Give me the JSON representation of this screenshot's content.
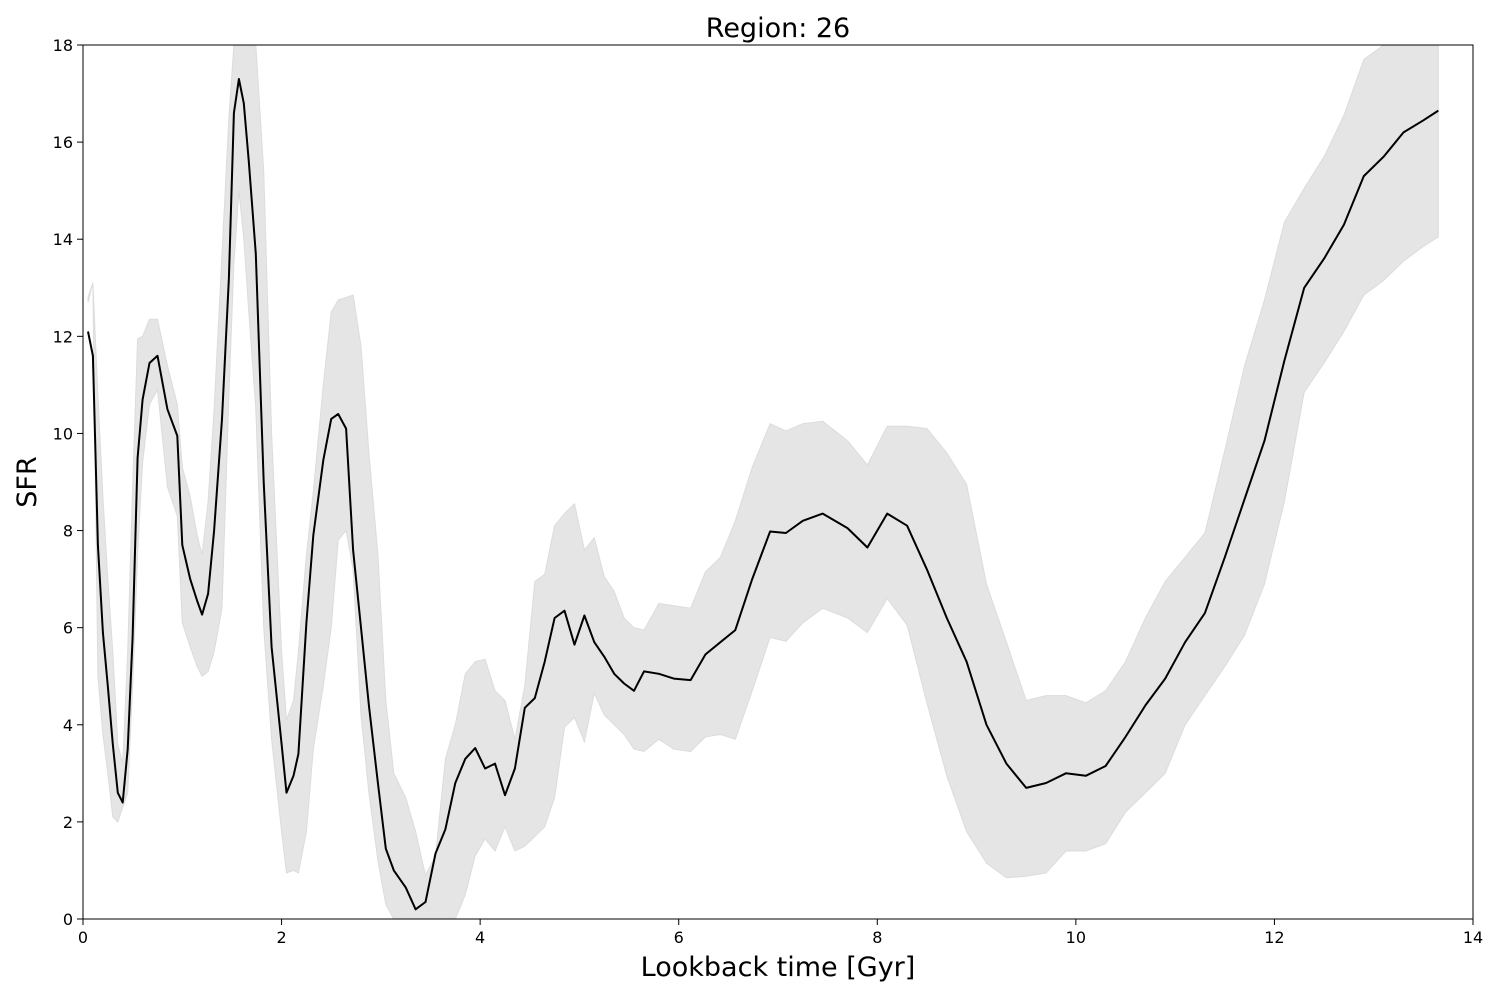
{
  "chart_data": {
    "type": "line",
    "title": "Region: 26",
    "xlabel": "Lookback time [Gyr]",
    "ylabel": "SFR",
    "xlim": [
      0,
      14
    ],
    "ylim": [
      0,
      18
    ],
    "xticks": [
      "0",
      "2",
      "4",
      "6",
      "8",
      "10",
      "12",
      "14"
    ],
    "yticks": [
      "0",
      "2",
      "4",
      "6",
      "8",
      "10",
      "12",
      "14",
      "16",
      "18"
    ],
    "grid": false,
    "legend": "none",
    "colors": {
      "line": "#000000",
      "band": "#e5e5e5"
    },
    "x": [
      0.05,
      0.1,
      0.15,
      0.2,
      0.25,
      0.3,
      0.35,
      0.4,
      0.45,
      0.5,
      0.55,
      0.6,
      0.67,
      0.75,
      0.85,
      0.95,
      1.0,
      1.08,
      1.15,
      1.2,
      1.26,
      1.32,
      1.4,
      1.47,
      1.52,
      1.57,
      1.62,
      1.67,
      1.74,
      1.82,
      1.9,
      2.0,
      2.05,
      2.12,
      2.17,
      2.25,
      2.32,
      2.42,
      2.5,
      2.57,
      2.65,
      2.72,
      2.8,
      2.88,
      2.97,
      3.05,
      3.13,
      3.25,
      3.35,
      3.45,
      3.55,
      3.65,
      3.75,
      3.85,
      3.95,
      4.05,
      4.15,
      4.25,
      4.35,
      4.45,
      4.55,
      4.65,
      4.75,
      4.85,
      4.95,
      5.05,
      5.15,
      5.25,
      5.35,
      5.45,
      5.55,
      5.65,
      5.8,
      5.95,
      6.12,
      6.27,
      6.42,
      6.57,
      6.74,
      6.92,
      7.08,
      7.25,
      7.45,
      7.7,
      7.9,
      8.1,
      8.3,
      8.5,
      8.7,
      8.9,
      9.1,
      9.3,
      9.5,
      9.7,
      9.9,
      10.1,
      10.3,
      10.5,
      10.7,
      10.9,
      11.1,
      11.3,
      11.5,
      11.7,
      11.9,
      12.1,
      12.3,
      12.5,
      12.7,
      12.9,
      13.1,
      13.3,
      13.5,
      13.65
    ],
    "y": [
      12.1,
      11.6,
      7.7,
      5.9,
      4.8,
      3.6,
      2.6,
      2.4,
      3.5,
      5.8,
      9.5,
      10.7,
      11.45,
      11.6,
      10.5,
      9.95,
      7.7,
      7.0,
      6.55,
      6.27,
      6.7,
      8.0,
      10.3,
      13.2,
      16.6,
      17.3,
      16.8,
      15.6,
      13.7,
      9.0,
      5.6,
      3.6,
      2.6,
      2.95,
      3.4,
      6.1,
      7.9,
      9.45,
      10.3,
      10.4,
      10.1,
      7.6,
      6.0,
      4.4,
      2.8,
      1.45,
      1.0,
      0.65,
      0.2,
      0.35,
      1.35,
      1.85,
      2.8,
      3.3,
      3.52,
      3.1,
      3.2,
      2.55,
      3.1,
      4.35,
      4.55,
      5.3,
      6.2,
      6.35,
      5.65,
      6.25,
      5.7,
      5.4,
      5.05,
      4.85,
      4.7,
      5.1,
      5.05,
      4.95,
      4.92,
      5.45,
      5.7,
      5.95,
      7.0,
      7.98,
      7.95,
      8.2,
      8.35,
      8.05,
      7.65,
      8.35,
      8.1,
      7.2,
      6.2,
      5.3,
      4.0,
      3.2,
      2.7,
      2.8,
      3.0,
      2.95,
      3.15,
      3.75,
      4.4,
      4.95,
      5.7,
      6.3,
      7.45,
      8.65,
      9.85,
      11.5,
      13.0,
      13.6,
      14.3,
      15.3,
      15.7,
      16.2,
      16.45,
      16.65
    ],
    "y_low": [
      12.7,
      13.1,
      5.0,
      3.8,
      3.0,
      2.1,
      2.0,
      2.3,
      2.6,
      4.8,
      7.5,
      9.4,
      10.6,
      10.9,
      8.9,
      8.3,
      6.1,
      5.6,
      5.2,
      5.0,
      5.1,
      5.5,
      6.4,
      10.8,
      13.5,
      15.0,
      14.0,
      12.5,
      10.5,
      6.0,
      3.7,
      1.8,
      0.95,
      1.0,
      0.95,
      1.8,
      3.5,
      4.8,
      6.0,
      7.8,
      8.0,
      7.2,
      4.2,
      2.6,
      1.2,
      0.3,
      0.0,
      0.0,
      0.0,
      0.0,
      0.0,
      0.0,
      0.0,
      0.5,
      1.3,
      1.65,
      1.4,
      1.9,
      1.4,
      1.5,
      1.7,
      1.9,
      2.5,
      3.95,
      4.15,
      3.65,
      4.65,
      4.2,
      4.0,
      3.8,
      3.5,
      3.45,
      3.7,
      3.5,
      3.45,
      3.75,
      3.8,
      3.7,
      4.7,
      5.8,
      5.72,
      6.1,
      6.4,
      6.2,
      5.9,
      6.6,
      6.05,
      4.45,
      2.95,
      1.8,
      1.15,
      0.85,
      0.88,
      0.95,
      1.4,
      1.4,
      1.55,
      2.2,
      2.6,
      3.0,
      4.0,
      4.6,
      5.2,
      5.85,
      6.9,
      8.6,
      10.85,
      11.45,
      12.1,
      12.85,
      13.15,
      13.55,
      13.85,
      14.05
    ],
    "y_high": [
      12.8,
      13.1,
      10.8,
      8.7,
      7.0,
      5.5,
      3.6,
      3.2,
      5.5,
      8.9,
      11.95,
      12.0,
      12.35,
      12.35,
      11.4,
      10.6,
      9.3,
      8.7,
      7.9,
      7.5,
      8.6,
      10.5,
      13.7,
      16.5,
      18.0,
      18.0,
      18.0,
      18.0,
      18.0,
      15.4,
      10.0,
      5.5,
      4.1,
      4.5,
      5.5,
      7.5,
      8.8,
      11.0,
      12.5,
      12.75,
      12.8,
      12.85,
      11.8,
      9.6,
      7.5,
      4.5,
      3.0,
      2.5,
      1.8,
      0.9,
      1.3,
      3.3,
      4.0,
      5.05,
      5.3,
      5.35,
      4.7,
      4.5,
      3.7,
      4.8,
      6.95,
      7.1,
      8.1,
      8.35,
      8.55,
      7.6,
      7.85,
      7.05,
      6.75,
      6.2,
      6.0,
      5.95,
      6.5,
      6.45,
      6.4,
      7.15,
      7.45,
      8.2,
      9.3,
      10.2,
      10.05,
      10.2,
      10.25,
      9.85,
      9.35,
      10.15,
      10.15,
      10.1,
      9.6,
      8.95,
      6.9,
      5.7,
      4.5,
      4.6,
      4.6,
      4.45,
      4.7,
      5.3,
      6.2,
      6.95,
      7.45,
      7.95,
      9.65,
      11.4,
      12.75,
      14.35,
      15.05,
      15.7,
      16.55,
      17.7,
      18.0,
      18.0,
      18.0,
      18.0
    ]
  }
}
